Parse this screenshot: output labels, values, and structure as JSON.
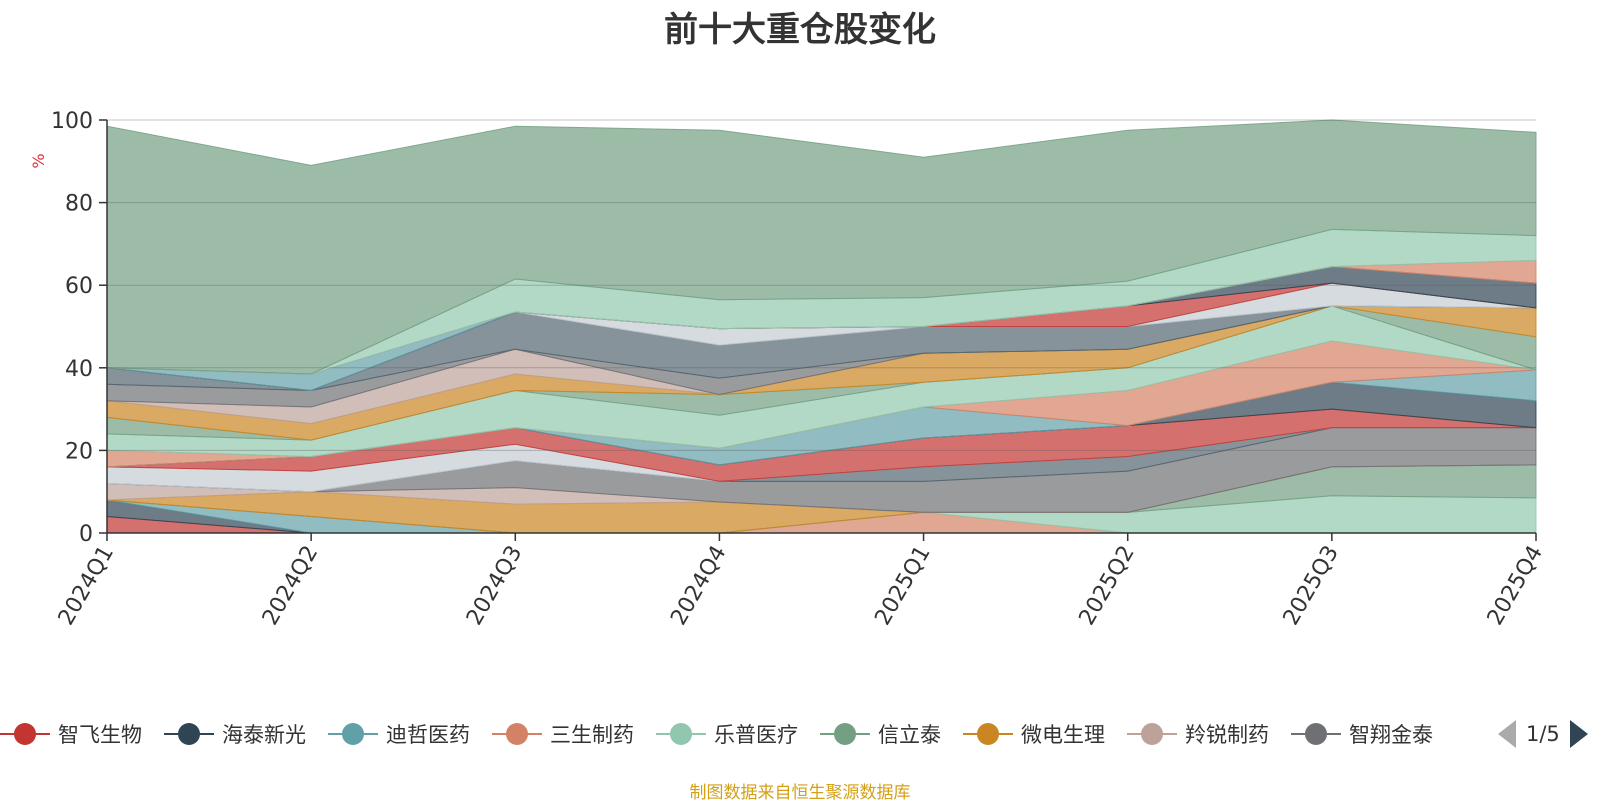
{
  "chart_data": {
    "type": "area",
    "stacked": true,
    "title": "前十大重仓股变化",
    "ylabel": "%",
    "ylim": [
      0,
      100
    ],
    "yticks": [
      "0",
      "20",
      "40",
      "60",
      "80",
      "100"
    ],
    "categories": [
      "2024Q1",
      "2024Q2",
      "2024Q3",
      "2024Q4",
      "2025Q1",
      "2025Q2",
      "2025Q3",
      "2025Q4"
    ],
    "series": [
      {
        "values": [
          4.0,
          0,
          0,
          0,
          0,
          0,
          0,
          0
        ]
      },
      {
        "values": [
          4.0,
          0,
          0,
          0,
          0,
          0,
          0,
          0
        ]
      },
      {
        "values": [
          0,
          4.0,
          0,
          0,
          0,
          0,
          0,
          0
        ]
      },
      {
        "values": [
          0,
          0,
          0,
          0,
          5.0,
          0,
          0,
          0
        ]
      },
      {
        "values": [
          0,
          0,
          0,
          0,
          0,
          5.0,
          9.0,
          8.5
        ]
      },
      {
        "values": [
          0,
          0,
          0,
          0,
          0,
          0,
          7.0,
          8.0
        ]
      },
      {
        "values": [
          0,
          6.0,
          7.0,
          7.5,
          0,
          0,
          0,
          0
        ]
      },
      {
        "values": [
          4.0,
          0,
          4.0,
          0,
          0,
          0,
          0,
          0
        ]
      },
      {
        "values": [
          0,
          0,
          6.5,
          5.0,
          7.5,
          10.0,
          9.5,
          9.0
        ]
      },
      {
        "values": [
          0,
          0,
          0,
          0,
          3.5,
          3.5,
          0,
          0
        ]
      },
      {
        "values": [
          4.0,
          5.0,
          4.0,
          0,
          0,
          0,
          0,
          0
        ]
      },
      {
        "values": [
          0,
          3.5,
          4.0,
          4.0,
          7.0,
          7.5,
          4.5,
          0
        ]
      },
      {
        "values": [
          0,
          0,
          0,
          0,
          0,
          0,
          6.5,
          6.5
        ]
      },
      {
        "values": [
          0,
          0,
          0,
          4.0,
          7.5,
          0,
          0,
          7.5
        ]
      },
      {
        "values": [
          4.0,
          0,
          0,
          0,
          0,
          8.5,
          10.0,
          0
        ]
      },
      {
        "values": [
          4.0,
          4.0,
          9.0,
          8.0,
          6.0,
          5.5,
          8.5,
          0
        ]
      },
      {
        "values": [
          4.0,
          0,
          0,
          5.0,
          0,
          0,
          0,
          8.0
        ]
      },
      {
        "values": [
          4.0,
          4.0,
          4.0,
          0,
          7.0,
          4.5,
          0,
          7.0
        ]
      },
      {
        "values": [
          0,
          4.0,
          6.0,
          0,
          0,
          0,
          0,
          0
        ]
      },
      {
        "values": [
          4.0,
          4.0,
          0,
          4.0,
          0,
          0,
          0,
          0
        ]
      },
      {
        "values": [
          4.0,
          0,
          9.0,
          8.0,
          6.5,
          5.5,
          0,
          0
        ]
      },
      {
        "values": [
          0,
          0,
          0,
          4.0,
          0,
          0,
          5.5,
          0
        ]
      },
      {
        "values": [
          0,
          0,
          0,
          0,
          0,
          5.0,
          0,
          0
        ]
      },
      {
        "values": [
          0,
          0,
          0,
          0,
          0,
          0,
          4.0,
          6.0
        ]
      },
      {
        "values": [
          0,
          4.0,
          0,
          0,
          0,
          0,
          0,
          0
        ]
      },
      {
        "values": [
          0,
          0,
          0,
          0,
          0,
          0,
          0,
          5.5
        ]
      },
      {
        "values": [
          0,
          0,
          8.0,
          7.0,
          7.0,
          6.0,
          9.0,
          6.0
        ]
      },
      {
        "values": [
          58.5,
          50.5,
          37.0,
          41.0,
          34.0,
          36.5,
          26.5,
          25.0
        ]
      }
    ],
    "legend": [
      {
        "name": "智飞生物",
        "color": "#c23531"
      },
      {
        "name": "海泰新光",
        "color": "#2f4554"
      },
      {
        "name": "迪哲医药",
        "color": "#61a0a8"
      },
      {
        "name": "三生制药",
        "color": "#d48265"
      },
      {
        "name": "乐普医疗",
        "color": "#91c7ae"
      },
      {
        "name": "信立泰",
        "color": "#749f83"
      },
      {
        "name": "微电生理",
        "color": "#ca8622"
      },
      {
        "name": "羚锐制药",
        "color": "#bda29a"
      },
      {
        "name": "智翔金泰",
        "color": "#6e7074"
      }
    ],
    "legend_placement": "bottom",
    "grid": true
  },
  "legend_pager": {
    "label": "1/5"
  },
  "source_note": "制图数据来自恒生聚源数据库"
}
